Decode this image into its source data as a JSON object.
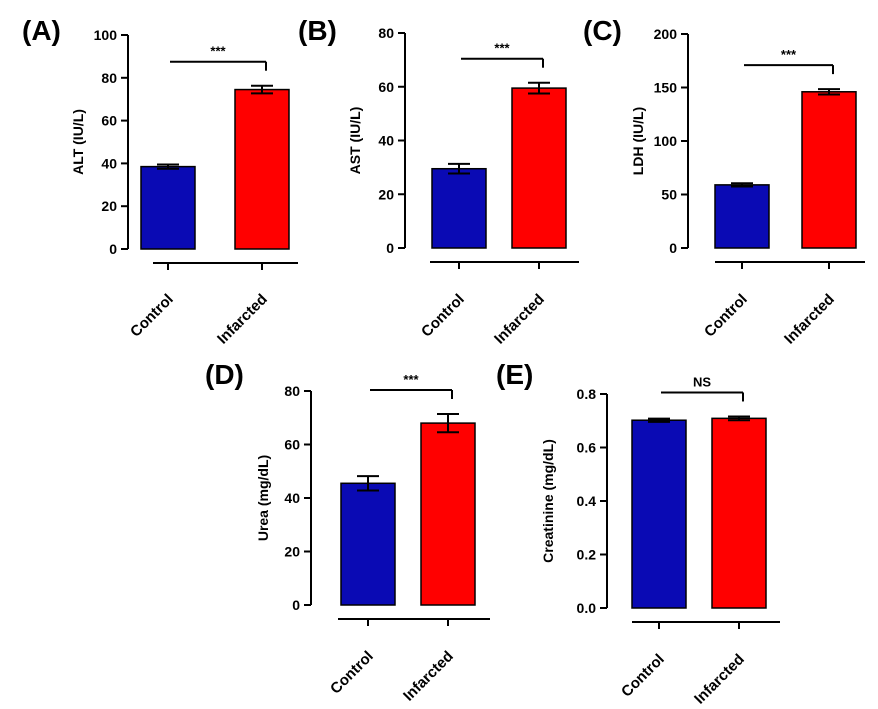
{
  "figure": {
    "background": "#ffffff"
  },
  "chart_data": [
    {
      "type": "bar",
      "panel": "(A)",
      "ylabel": "ALT (IU/L)",
      "categories": [
        "Control",
        "Infarcted"
      ],
      "values": [
        38.5,
        74.5
      ],
      "errors": [
        1.0,
        1.8
      ],
      "colors": [
        "#0a0ab4",
        "#ff0000"
      ],
      "ylim": [
        0,
        100
      ],
      "ticks": [
        0,
        20,
        40,
        60,
        80,
        100
      ],
      "tick_labels": [
        "0",
        "20",
        "40",
        "60",
        "80",
        "100"
      ],
      "significance": "***"
    },
    {
      "type": "bar",
      "panel": "(B)",
      "ylabel": "AST (IU/L)",
      "categories": [
        "Control",
        "Infarcted"
      ],
      "values": [
        29.5,
        59.5
      ],
      "errors": [
        1.8,
        2.0
      ],
      "colors": [
        "#0a0ab4",
        "#ff0000"
      ],
      "ylim": [
        0,
        80
      ],
      "ticks": [
        0,
        20,
        40,
        60,
        80
      ],
      "tick_labels": [
        "0",
        "20",
        "40",
        "60",
        "80"
      ],
      "significance": "***"
    },
    {
      "type": "bar",
      "panel": "(C)",
      "ylabel": "LDH (IU/L)",
      "categories": [
        "Control",
        "Infarcted"
      ],
      "values": [
        59,
        146
      ],
      "errors": [
        1.5,
        2.5
      ],
      "colors": [
        "#0a0ab4",
        "#ff0000"
      ],
      "ylim": [
        0,
        200
      ],
      "ticks": [
        0,
        50,
        100,
        150,
        200
      ],
      "tick_labels": [
        "0",
        "50",
        "100",
        "150",
        "200"
      ],
      "significance": "***"
    },
    {
      "type": "bar",
      "panel": "(D)",
      "ylabel": "Urea (mg/dL)",
      "categories": [
        "Control",
        "Infarcted"
      ],
      "values": [
        45.5,
        68
      ],
      "errors": [
        2.7,
        3.4
      ],
      "colors": [
        "#0a0ab4",
        "#ff0000"
      ],
      "ylim": [
        0,
        80
      ],
      "ticks": [
        0,
        20,
        40,
        60,
        80
      ],
      "tick_labels": [
        "0",
        "20",
        "40",
        "60",
        "80"
      ],
      "significance": "***"
    },
    {
      "type": "bar",
      "panel": "(E)",
      "ylabel": "Creatinine (mg/dL)",
      "categories": [
        "Control",
        "Infarcted"
      ],
      "values": [
        0.702,
        0.709
      ],
      "errors": [
        0.006,
        0.007
      ],
      "colors": [
        "#0a0ab4",
        "#ff0000"
      ],
      "ylim": [
        0,
        0.8
      ],
      "ticks": [
        0,
        0.2,
        0.4,
        0.6,
        0.8
      ],
      "tick_labels": [
        "0.0",
        "0.2",
        "0.4",
        "0.6",
        "0.8"
      ],
      "significance": "NS"
    }
  ]
}
